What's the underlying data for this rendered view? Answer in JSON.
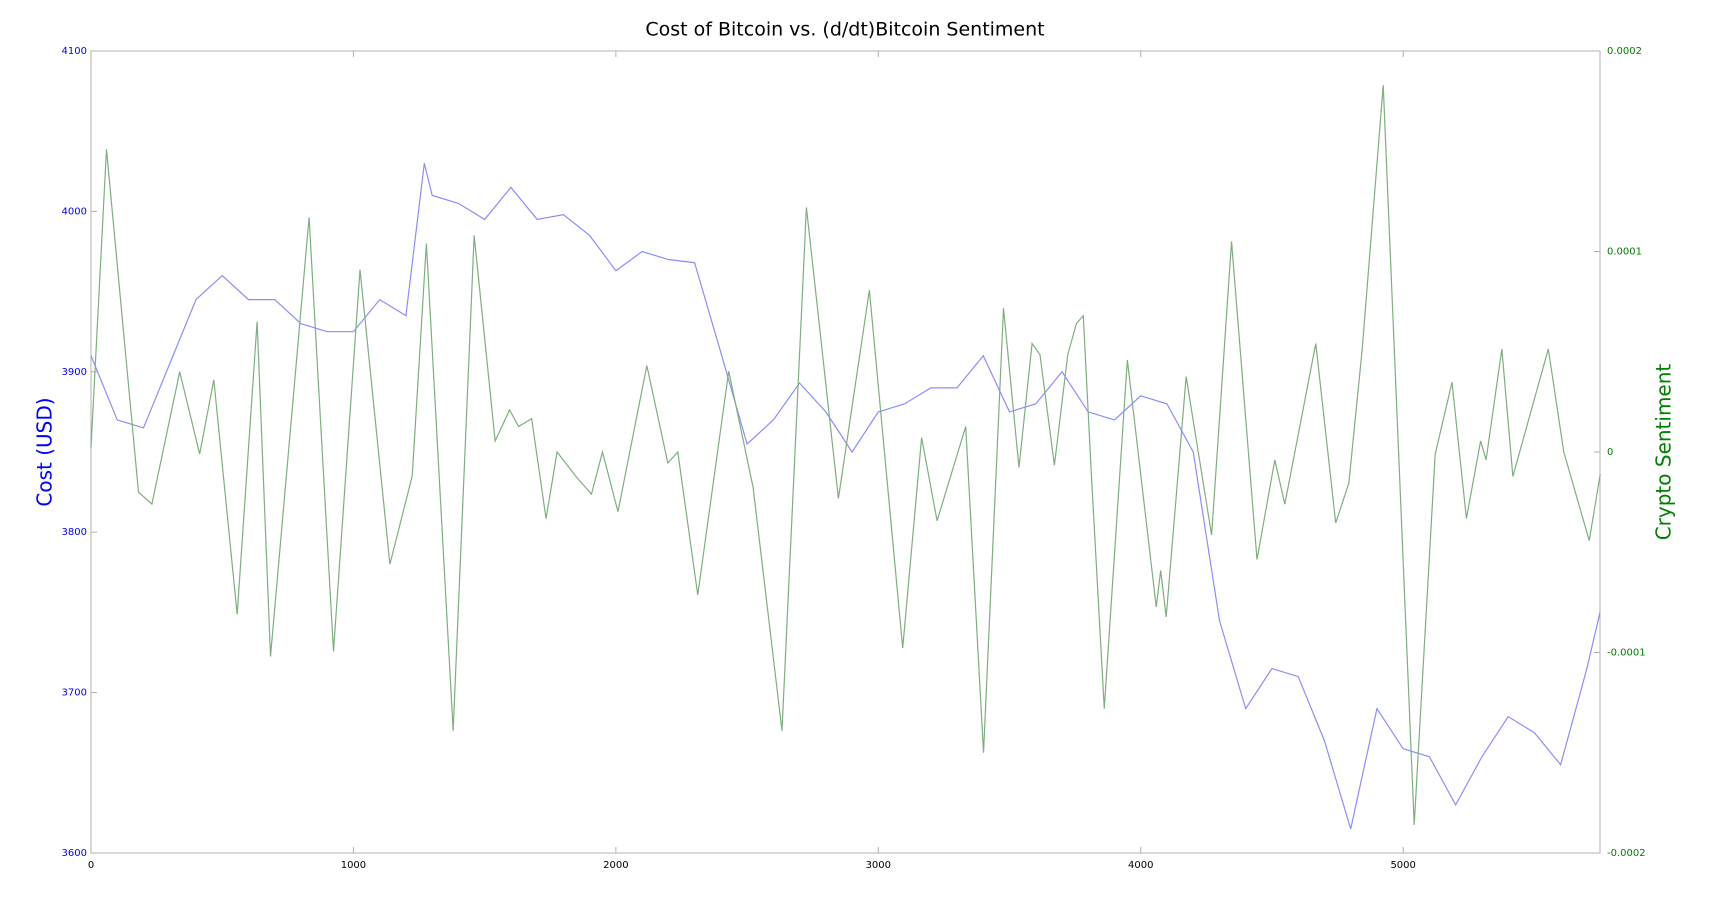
{
  "chart_data": {
    "type": "line",
    "title": "Cost of Bitcoin vs. (d/dt)Bitcoin Sentiment",
    "ylabel": "Cost (USD)",
    "y2label": "Crypto Sentiment",
    "xlim": [
      0,
      5750
    ],
    "xticks": [
      0,
      1000,
      2000,
      3000,
      4000,
      5000
    ],
    "ylim": [
      3600,
      4100
    ],
    "yticks": [
      3600,
      3700,
      3800,
      3900,
      4000,
      4100
    ],
    "y2lim": [
      -0.0002,
      0.0002
    ],
    "y2ticks": [
      -0.0002,
      -0.0001,
      0,
      0.0001,
      0.0002
    ],
    "ylabel_color": "#0000ff",
    "y2label_color": "#007f00",
    "series": [
      {
        "color": "#8c8cff",
        "x": [
          0,
          100,
          200,
          300,
          400,
          500,
          600,
          700,
          800,
          900,
          1000,
          1100,
          1200,
          1270,
          1300,
          1400,
          1500,
          1600,
          1700,
          1800,
          1900,
          2000,
          2100,
          2200,
          2300,
          2400,
          2500,
          2600,
          2700,
          2800,
          2900,
          3000,
          3100,
          3200,
          3300,
          3400,
          3500,
          3600,
          3700,
          3800,
          3900,
          4000,
          4100,
          4200,
          4300,
          4400,
          4500,
          4600,
          4700,
          4800,
          4900,
          5000,
          5100,
          5200,
          5300,
          5400,
          5500,
          5600,
          5700,
          5750
        ],
        "values": [
          3910,
          3870,
          3865,
          3905,
          3945,
          3960,
          3945,
          3945,
          3930,
          3925,
          3925,
          3945,
          3935,
          4030,
          4010,
          4005,
          3995,
          4015,
          3995,
          3998,
          3985,
          3963,
          3975,
          3970,
          3968,
          3912,
          3855,
          3870,
          3893,
          3875,
          3850,
          3875,
          3880,
          3890,
          3890,
          3910,
          3875,
          3880,
          3900,
          3875,
          3870,
          3885,
          3880,
          3850,
          3745,
          3690,
          3715,
          3710,
          3670,
          3615,
          3690,
          3665,
          3660,
          3630,
          3660,
          3685,
          3675,
          3655,
          3715,
          3750
        ]
      },
      {
        "color": "#7fae7f",
        "axis": "y2",
        "x": [
          0,
          59,
          181,
          232,
          338,
          414,
          468,
          557,
          633,
          684,
          831,
          924,
          1025,
          1139,
          1224,
          1278,
          1380,
          1460,
          1540,
          1595,
          1629,
          1679,
          1734,
          1776,
          1848,
          1907,
          1949,
          2008,
          2118,
          2198,
          2236,
          2312,
          2430,
          2523,
          2633,
          2726,
          2848,
          2966,
          3093,
          3165,
          3224,
          3333,
          3401,
          3477,
          3536,
          3586,
          3616,
          3671,
          3722,
          3755,
          3781,
          3810,
          3861,
          3949,
          4059,
          4076,
          4097,
          4173,
          4270,
          4346,
          4443,
          4511,
          4549,
          4667,
          4743,
          4793,
          4844,
          4924,
          5042,
          5122,
          5186,
          5241,
          5295,
          5316,
          5376,
          5418,
          5553,
          5612,
          5709,
          5751
        ],
        "values": [
          2e-06,
          0.000151,
          -2e-05,
          -2.6e-05,
          4e-05,
          -1e-06,
          3.6e-05,
          -8.1e-05,
          6.5e-05,
          -0.000102,
          0.000117,
          -9.95e-05,
          9.1e-05,
          -5.6e-05,
          -1.2e-05,
          0.000104,
          -0.000139,
          0.000108,
          5.5e-06,
          2.1e-05,
          1.27e-05,
          1.66e-05,
          -3.32e-05,
          0,
          -1.22e-05,
          -2.1e-05,
          0,
          -2.98e-05,
          4.31e-05,
          -5.5e-06,
          0,
          -7.13e-05,
          4.03e-05,
          -1.77e-05,
          -0.000139,
          0.000122,
          -2.32e-05,
          8.07e-05,
          -9.78e-05,
          7.2e-06,
          -3.43e-05,
          1.27e-05,
          -0.00015,
          7.18e-05,
          -7.7e-06,
          5.41e-05,
          4.86e-05,
          -6.6e-06,
          4.86e-05,
          6.41e-05,
          6.8e-05,
          -6.6e-06,
          -0.000128,
          4.59e-05,
          -7.73e-05,
          -5.91e-05,
          -8.23e-05,
          3.76e-05,
          -4.14e-05,
          0.000105,
          -5.36e-05,
          -3.9e-06,
          -2.6e-05,
          5.41e-05,
          -3.54e-05,
          -1.55e-05,
          5.14e-05,
          0.000183,
          -0.000186,
          -1.1e-06,
          3.48e-05,
          -3.32e-05,
          5.5e-06,
          -3.9e-06,
          5.14e-05,
          -1.22e-05,
          5.14e-05,
          0,
          -4.42e-05,
          -1.1e-05
        ]
      }
    ]
  }
}
